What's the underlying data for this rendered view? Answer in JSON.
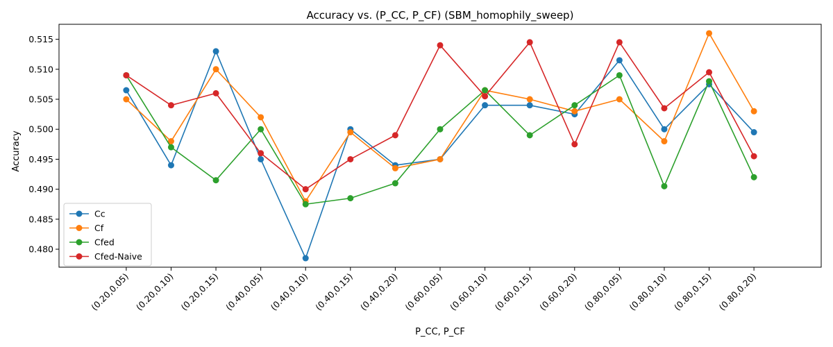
{
  "chart_data": {
    "type": "line",
    "title": "Accuracy vs. (P_CC, P_CF) (SBM_homophily_sweep)",
    "xlabel": "P_CC, P_CF",
    "ylabel": "Accuracy",
    "categories": [
      "(0.20,0.05)",
      "(0.20,0.10)",
      "(0.20,0.15)",
      "(0.40,0.05)",
      "(0.40,0.10)",
      "(0.40,0.15)",
      "(0.40,0.20)",
      "(0.60,0.05)",
      "(0.60,0.10)",
      "(0.60,0.15)",
      "(0.60,0.20)",
      "(0.80,0.05)",
      "(0.80,0.10)",
      "(0.80,0.15)",
      "(0.80,0.20)"
    ],
    "ylim": [
      0.477,
      0.5175
    ],
    "yticks": [
      0.48,
      0.485,
      0.49,
      0.495,
      0.5,
      0.505,
      0.51,
      0.515
    ],
    "ytick_labels": [
      "0.480",
      "0.485",
      "0.490",
      "0.495",
      "0.500",
      "0.505",
      "0.510",
      "0.515"
    ],
    "grid": false,
    "legend_position": "lower-left",
    "series": [
      {
        "name": "Cc",
        "color": "#1f77b4",
        "values": [
          0.5065,
          0.494,
          0.513,
          0.495,
          0.4785,
          0.5,
          0.494,
          0.495,
          0.504,
          0.504,
          0.5025,
          0.5115,
          0.5,
          0.5075,
          0.4995
        ]
      },
      {
        "name": "Cf",
        "color": "#ff7f0e",
        "values": [
          0.505,
          0.498,
          0.51,
          0.502,
          0.488,
          0.4995,
          0.4935,
          0.495,
          0.5065,
          0.505,
          0.503,
          0.505,
          0.498,
          0.516,
          0.503
        ]
      },
      {
        "name": "Cfed",
        "color": "#2ca02c",
        "values": [
          0.509,
          0.497,
          0.4915,
          0.5,
          0.4875,
          0.4885,
          0.491,
          0.5,
          0.5065,
          0.499,
          0.504,
          0.509,
          0.4905,
          0.508,
          0.492
        ]
      },
      {
        "name": "Cfed-Naive",
        "color": "#d62728",
        "values": [
          0.509,
          0.504,
          0.506,
          0.496,
          0.49,
          0.495,
          0.499,
          0.514,
          0.5055,
          0.5145,
          0.4975,
          0.5145,
          0.5035,
          0.5095,
          0.4955
        ]
      }
    ]
  }
}
